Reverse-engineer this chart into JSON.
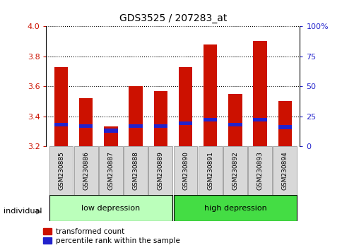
{
  "title": "GDS3525 / 207283_at",
  "samples": [
    "GSM230885",
    "GSM230886",
    "GSM230887",
    "GSM230888",
    "GSM230889",
    "GSM230890",
    "GSM230891",
    "GSM230892",
    "GSM230893",
    "GSM230894"
  ],
  "transformed_counts": [
    3.73,
    3.52,
    3.33,
    3.6,
    3.57,
    3.73,
    3.88,
    3.55,
    3.9,
    3.5
  ],
  "percentile_ranks_pct": [
    18,
    17,
    13,
    17,
    17,
    19,
    22,
    18,
    22,
    16
  ],
  "ylim_left": [
    3.2,
    4.0
  ],
  "yticks_left": [
    3.2,
    3.4,
    3.6,
    3.8,
    4.0
  ],
  "yticks_right": [
    0,
    25,
    50,
    75,
    100
  ],
  "ytick_labels_right": [
    "0",
    "25",
    "50",
    "75",
    "100%"
  ],
  "bar_color_red": "#cc1100",
  "bar_color_blue": "#2222cc",
  "bar_width": 0.55,
  "blue_bar_height": 0.025,
  "groups": [
    {
      "label": "low depression",
      "start": 0,
      "end": 4,
      "color": "#bbffbb"
    },
    {
      "label": "high depression",
      "start": 5,
      "end": 9,
      "color": "#44dd44"
    }
  ],
  "xlabel": "individual",
  "legend_entries": [
    "transformed count",
    "percentile rank within the sample"
  ],
  "tick_color_left": "#cc1100",
  "tick_color_right": "#2222cc",
  "bg_color": "#ffffff"
}
